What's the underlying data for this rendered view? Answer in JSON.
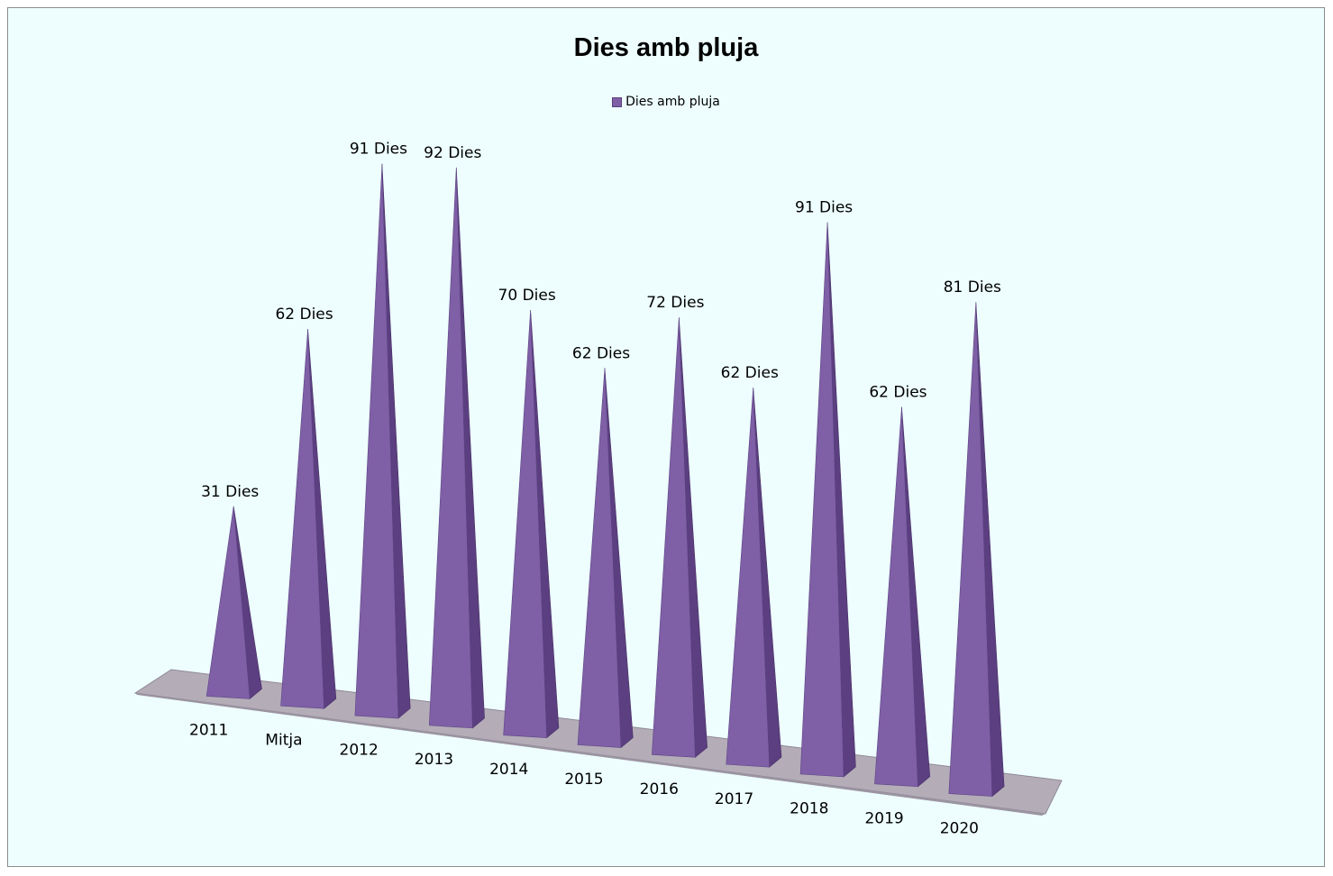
{
  "chart_data": {
    "type": "bar",
    "title": "Dies amb pluja",
    "xlabel": "",
    "ylabel": "",
    "legend": "top",
    "grid": false,
    "ylim": [
      0,
      100
    ],
    "categories": [
      "2011",
      "Mitja",
      "2012",
      "2013",
      "2014",
      "2015",
      "2016",
      "2017",
      "2018",
      "2019",
      "2020"
    ],
    "series": [
      {
        "name": "Dies amb pluja",
        "values": [
          31,
          62,
          91,
          92,
          70,
          62,
          72,
          62,
          91,
          62,
          81
        ],
        "labels": [
          "31 Dies",
          "62 Dies",
          "91 Dies",
          "92 Dies",
          "70 Dies",
          "62 Dies",
          "72 Dies",
          "62 Dies",
          "91 Dies",
          "62 Dies",
          "81 Dies"
        ]
      }
    ],
    "colors": {
      "front": "#7f5fa6",
      "side": "#5b3f80",
      "floor": "#b4adb8",
      "background": "#eefefe"
    }
  }
}
